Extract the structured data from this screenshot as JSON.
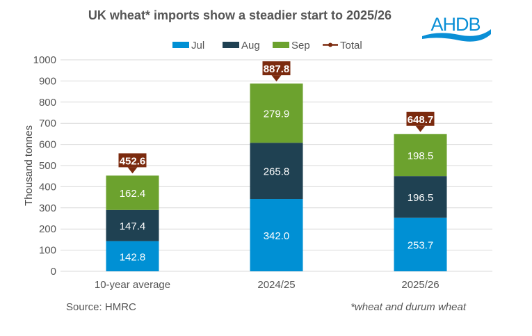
{
  "chart_data": {
    "type": "bar",
    "stacked": true,
    "title": "UK wheat* imports show a steadier start to 2025/26",
    "ylabel": "Thousand tonnes",
    "xlabel": "",
    "ylim": [
      0,
      1000
    ],
    "yticks": [
      0,
      100,
      200,
      300,
      400,
      500,
      600,
      700,
      800,
      900,
      1000
    ],
    "grid": true,
    "legend_position": "top",
    "categories": [
      "10-year average",
      "2024/25",
      "2025/26"
    ],
    "series": [
      {
        "name": "Jul",
        "color": "#0090D4",
        "values": [
          142.8,
          342.0,
          253.7
        ]
      },
      {
        "name": "Aug",
        "color": "#1F4152",
        "values": [
          147.4,
          265.8,
          196.5
        ]
      },
      {
        "name": "Sep",
        "color": "#6CA22E",
        "values": [
          162.4,
          279.9,
          198.5
        ]
      }
    ],
    "total": {
      "name": "Total",
      "color": "#7B2A0E",
      "values": [
        "452.6",
        "887.8",
        "648.7"
      ]
    }
  },
  "logo": {
    "text": "AHDB",
    "color": "#0A8FD6"
  },
  "footer": {
    "source": "Source: HMRC",
    "note": "*wheat and durum wheat"
  }
}
